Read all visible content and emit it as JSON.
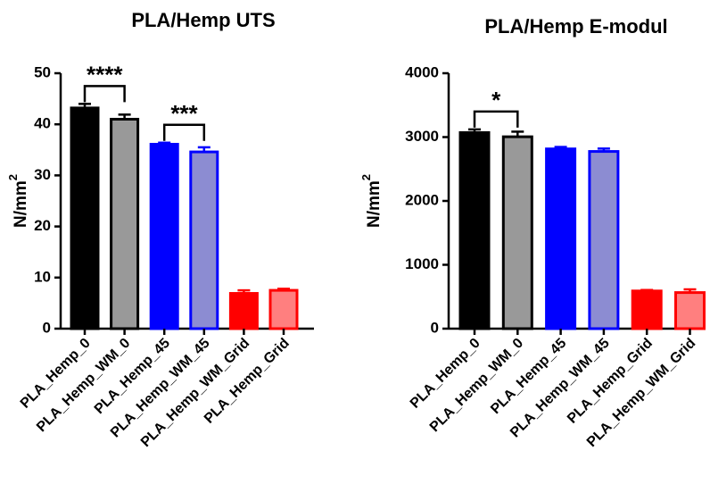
{
  "chart_data": [
    {
      "type": "bar",
      "title": "PLA/Hemp UTS",
      "ylabel": "N/mm",
      "ylabel_sup": "2",
      "ylim": [
        0,
        50
      ],
      "yticks": [
        "0",
        "10",
        "20",
        "30",
        "40",
        "50"
      ],
      "categories": [
        "PLA_Hemp_0",
        "PLA_Hemp_WM_0",
        "PLA_Hemp_45",
        "PLA_Hemp_WM_45",
        "PLA_Hemp_WM_Grid",
        "PLA_Hemp_Grid"
      ],
      "values": [
        43.2,
        41.0,
        36.1,
        34.6,
        6.9,
        7.5
      ],
      "errors": [
        0.8,
        0.9,
        0.3,
        0.9,
        0.6,
        0.3
      ],
      "fill_colors": [
        "#000000",
        "#999999",
        "#0000ff",
        "#8c8cd2",
        "#ff0000",
        "#ff7f7f"
      ],
      "edge_colors": [
        "#000000",
        "#000000",
        "#0000ff",
        "#0000ff",
        "#ff0000",
        "#ff0000"
      ],
      "significance": [
        {
          "from": 0,
          "to": 1,
          "label": "****"
        },
        {
          "from": 2,
          "to": 3,
          "label": "***"
        }
      ]
    },
    {
      "type": "bar",
      "title": "PLA/Hemp E-modul",
      "ylabel": "N/mm",
      "ylabel_sup": "2",
      "ylim": [
        0,
        4000
      ],
      "yticks": [
        "0",
        "1000",
        "2000",
        "3000",
        "4000"
      ],
      "categories": [
        "PLA_Hemp_0",
        "PLA_Hemp_WM_0",
        "PLA_Hemp_45",
        "PLA_Hemp_WM_45",
        "PLA_Hemp_Grid",
        "PLA_Hemp_WM_Grid"
      ],
      "values": [
        3070,
        3005,
        2815,
        2775,
        590,
        565
      ],
      "errors": [
        50,
        80,
        30,
        45,
        15,
        50
      ],
      "fill_colors": [
        "#000000",
        "#999999",
        "#0000ff",
        "#8c8cd2",
        "#ff0000",
        "#ff7f7f"
      ],
      "edge_colors": [
        "#000000",
        "#000000",
        "#0000ff",
        "#0000ff",
        "#ff0000",
        "#ff0000"
      ],
      "significance": [
        {
          "from": 0,
          "to": 1,
          "label": "*"
        }
      ]
    }
  ]
}
